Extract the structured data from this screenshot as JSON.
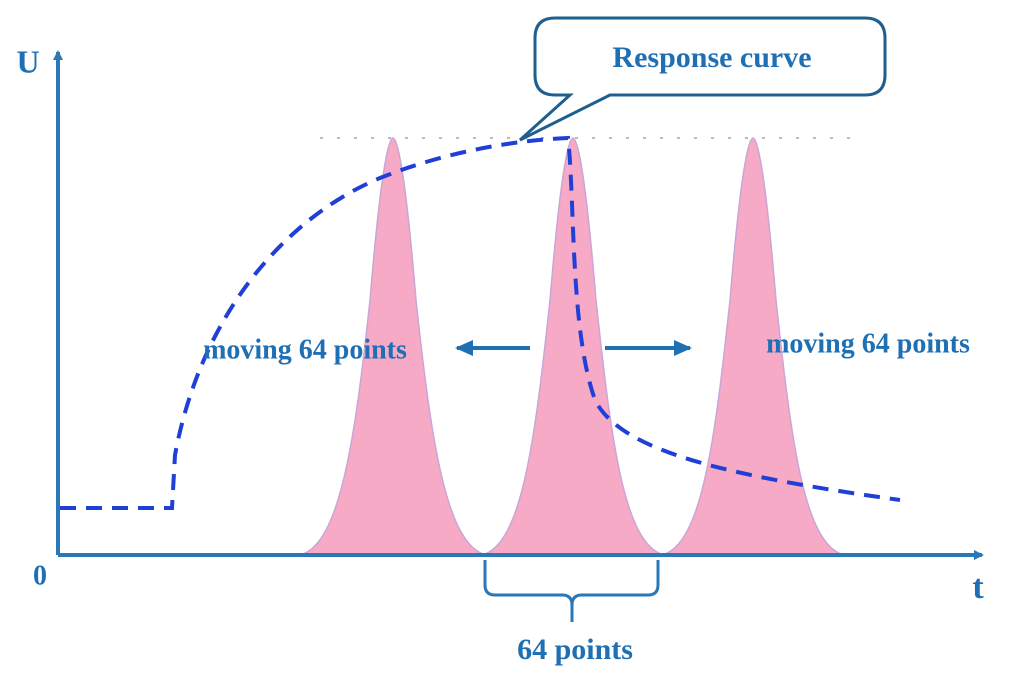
{
  "axes": {
    "y_label": "U",
    "x_label": "t",
    "origin_label": "0"
  },
  "callout": {
    "text": "Response  curve"
  },
  "annotations": {
    "left": "moving 64 points",
    "right": "moving 64 points",
    "bottom": "64 points"
  }
}
